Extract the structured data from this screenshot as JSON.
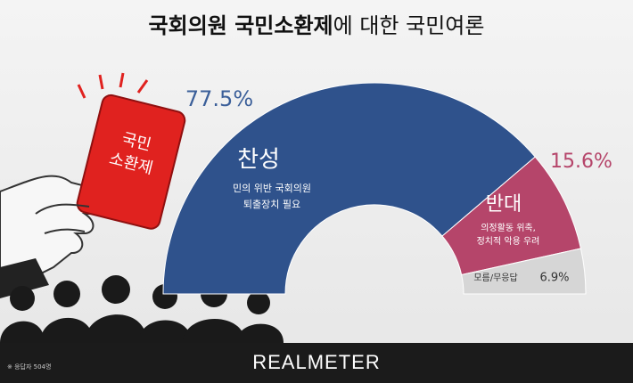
{
  "chart_data": {
    "type": "pie",
    "title": [
      "국회의원 국민소환제",
      "에 대한 국민여론"
    ],
    "categories": [
      "찬성",
      "반대",
      "모름/무응답"
    ],
    "descriptions": [
      [
        "민의 위반 국회의원",
        "퇴출장치 필요"
      ],
      [
        "의정활동 위축,",
        "정치적 악용 우려"
      ],
      []
    ],
    "values": [
      77.5,
      15.6,
      6.9
    ],
    "value_labels": [
      "77.5%",
      "15.6%",
      "6.9%"
    ],
    "colors": [
      "#2f528c",
      "#b5456a",
      "#d6d6d6"
    ]
  },
  "illustration": {
    "card": [
      "국민",
      "소환제"
    ]
  },
  "footer": {
    "note": "※ 응답자 504명",
    "logo": "REALMETER"
  }
}
